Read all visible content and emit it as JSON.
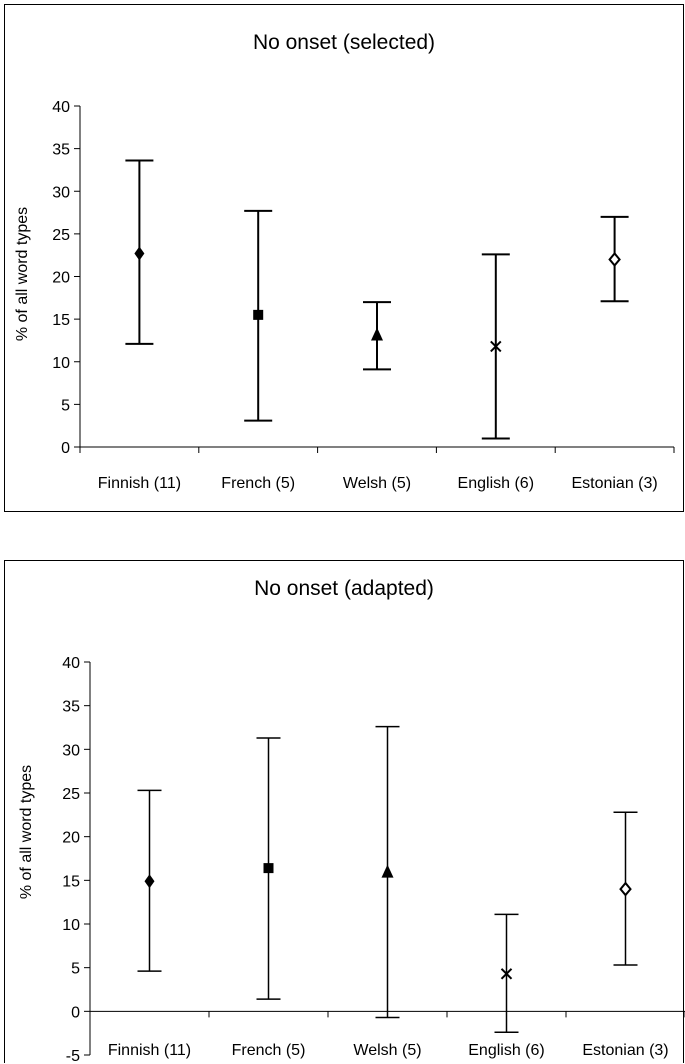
{
  "chart_data": [
    {
      "type": "scatter",
      "title": "No onset (selected)",
      "xlabel": "",
      "ylabel": "% of all word types",
      "ylim": [
        0,
        40
      ],
      "yticks": [
        0,
        5,
        10,
        15,
        20,
        25,
        30,
        35,
        40
      ],
      "grid": false,
      "categories": [
        "Finnish (11)",
        "French (5)",
        "Welsh (5)",
        "English (6)",
        "Estonian (3)"
      ],
      "values": [
        22.7,
        15.5,
        13.2,
        11.8,
        22.0
      ],
      "error_low": [
        12.1,
        3.1,
        9.1,
        1.0,
        17.1
      ],
      "error_high": [
        33.6,
        27.7,
        17.0,
        22.6,
        27.0
      ],
      "markers": [
        "diamond",
        "square",
        "triangle",
        "x",
        "diamond-open"
      ]
    },
    {
      "type": "scatter",
      "title": "No onset (adapted)",
      "xlabel": "",
      "ylabel": "% of all word types",
      "ylim": [
        -5,
        40
      ],
      "yticks": [
        -5,
        0,
        5,
        10,
        15,
        20,
        25,
        30,
        35,
        40
      ],
      "grid": false,
      "categories": [
        "Finnish (11)",
        "French (5)",
        "Welsh (5)",
        "English (6)",
        "Estonian (3)"
      ],
      "values": [
        14.9,
        16.4,
        16.0,
        4.3,
        14.0
      ],
      "error_low": [
        4.6,
        1.4,
        -0.7,
        -2.4,
        5.3
      ],
      "error_high": [
        25.3,
        31.3,
        32.6,
        11.1,
        22.8
      ],
      "markers": [
        "diamond",
        "square",
        "triangle",
        "x",
        "diamond-open"
      ]
    }
  ]
}
